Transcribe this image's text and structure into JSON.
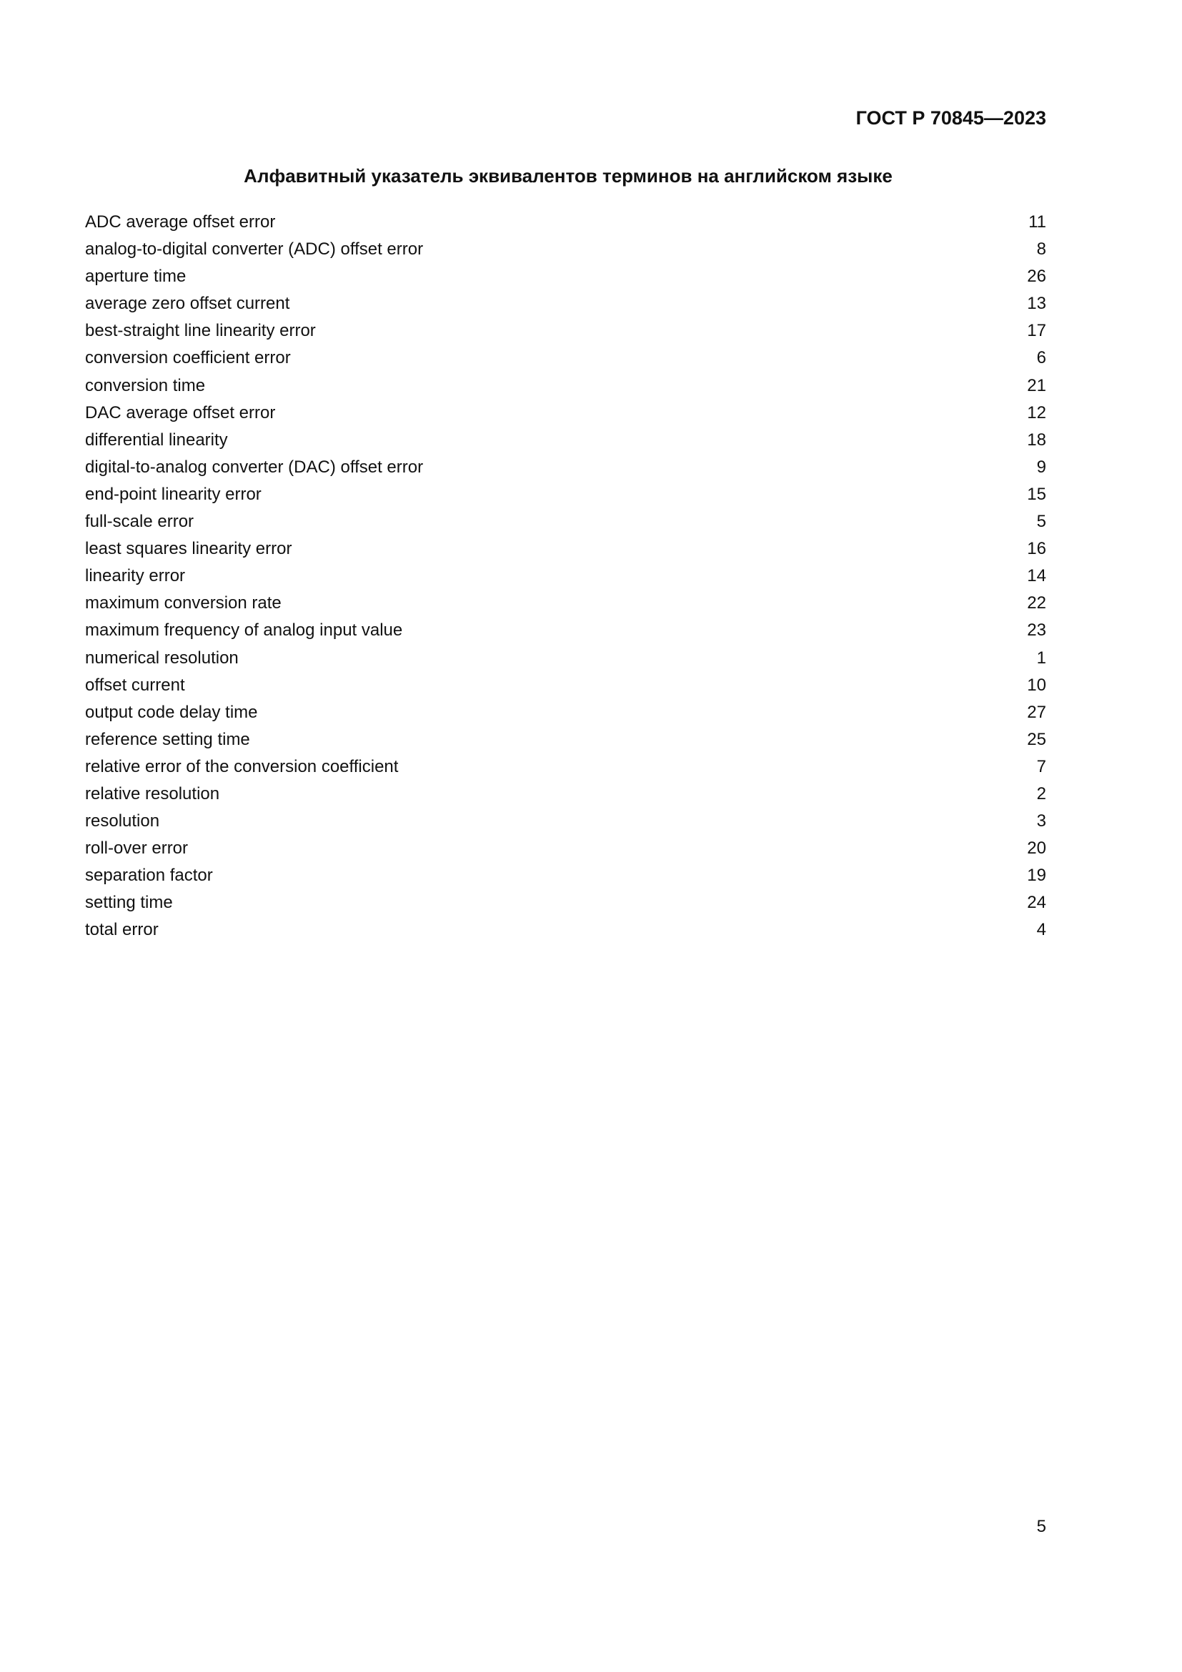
{
  "header": {
    "standard_code": "ГОСТ Р 70845—2023"
  },
  "title": "Алфавитный указатель эквивалентов терминов на английском языке",
  "entries": [
    {
      "term": "ADC average offset error",
      "number": "11"
    },
    {
      "term": "analog-to-digital converter (ADC) offset error",
      "number": "8"
    },
    {
      "term": "aperture time",
      "number": "26"
    },
    {
      "term": "average zero offset current",
      "number": "13"
    },
    {
      "term": "best-straight line linearity error",
      "number": "17"
    },
    {
      "term": "conversion coefficient error",
      "number": "6"
    },
    {
      "term": "conversion time",
      "number": "21"
    },
    {
      "term": "DAC average offset error",
      "number": "12"
    },
    {
      "term": "differential linearity",
      "number": "18"
    },
    {
      "term": "digital-to-analog converter (DAC) offset error",
      "number": "9"
    },
    {
      "term": "end-point linearity error",
      "number": "15"
    },
    {
      "term": "full-scale error",
      "number": "5"
    },
    {
      "term": "least squares linearity error",
      "number": "16"
    },
    {
      "term": "linearity error",
      "number": "14"
    },
    {
      "term": "maximum conversion rate",
      "number": "22"
    },
    {
      "term": "maximum frequency of analog input value",
      "number": "23"
    },
    {
      "term": "numerical resolution",
      "number": "1"
    },
    {
      "term": "offset current",
      "number": "10"
    },
    {
      "term": "output code delay time",
      "number": "27"
    },
    {
      "term": "reference setting time",
      "number": "25"
    },
    {
      "term": "relative error of the conversion coefficient",
      "number": "7"
    },
    {
      "term": "relative resolution",
      "number": "2"
    },
    {
      "term": "resolution",
      "number": "3"
    },
    {
      "term": "roll-over error",
      "number": "20"
    },
    {
      "term": "separation factor",
      "number": "19"
    },
    {
      "term": "setting time",
      "number": "24"
    },
    {
      "term": "total error",
      "number": "4"
    }
  ],
  "page_number": "5"
}
